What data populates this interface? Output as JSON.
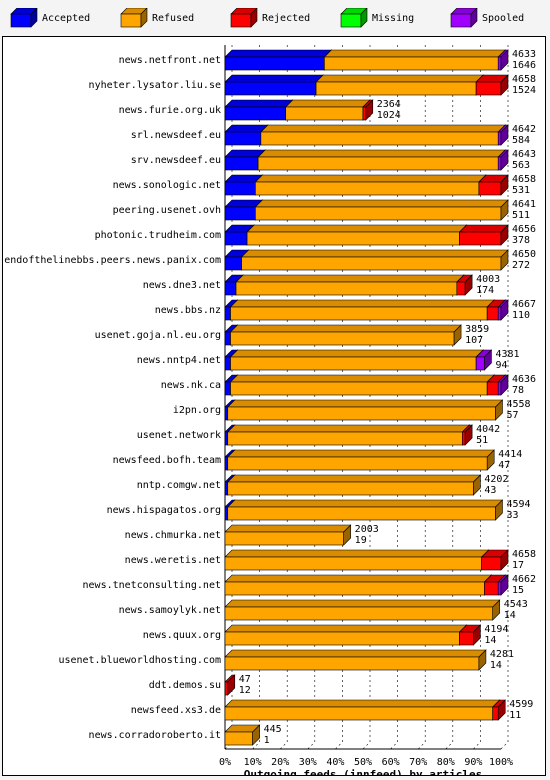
{
  "colors": {
    "accepted": "#0000ff",
    "refused": "#ffa500",
    "rejected": "#ff0000",
    "missing": "#00ff00",
    "spooled": "#a000ff"
  },
  "legend": [
    {
      "key": "accepted",
      "label": "Accepted",
      "icon": "cube-blue-icon"
    },
    {
      "key": "refused",
      "label": "Refused",
      "icon": "cube-orange-icon"
    },
    {
      "key": "rejected",
      "label": "Rejected",
      "icon": "cube-red-icon"
    },
    {
      "key": "missing",
      "label": "Missing",
      "icon": "cube-green-icon"
    },
    {
      "key": "spooled",
      "label": "Spooled",
      "icon": "cube-purple-icon"
    }
  ],
  "chart_data": {
    "type": "bar",
    "orientation": "horizontal",
    "stacked": true,
    "title": "Outgoing feeds (innfeed) by articles",
    "x_ticks": [
      "0%",
      "10%",
      "20%",
      "30%",
      "40%",
      "50%",
      "60%",
      "70%",
      "80%",
      "90%",
      "100%"
    ],
    "xlim": [
      0,
      100
    ],
    "grid": true,
    "legend_position": "top",
    "series_order": [
      "accepted",
      "refused",
      "rejected",
      "missing",
      "spooled"
    ],
    "rows": [
      {
        "name": "news.netfront.net",
        "offered": "4633",
        "accepted": "1646",
        "pct": {
          "accepted": 36,
          "refused": 63,
          "rejected": 0,
          "missing": 0,
          "spooled": 1
        }
      },
      {
        "name": "nyheter.lysator.liu.se",
        "offered": "4658",
        "accepted": "1524",
        "pct": {
          "accepted": 33,
          "refused": 58,
          "rejected": 9,
          "missing": 0,
          "spooled": 0
        }
      },
      {
        "name": "news.furie.org.uk",
        "offered": "2364",
        "accepted": "1024",
        "pct": {
          "accepted": 22,
          "refused": 28,
          "rejected": 1,
          "missing": 0,
          "spooled": 0
        }
      },
      {
        "name": "srl.newsdeef.eu",
        "offered": "4642",
        "accepted": "584",
        "pct": {
          "accepted": 13,
          "refused": 86,
          "rejected": 0,
          "missing": 0,
          "spooled": 1
        }
      },
      {
        "name": "srv.newsdeef.eu",
        "offered": "4643",
        "accepted": "563",
        "pct": {
          "accepted": 12,
          "refused": 87,
          "rejected": 0,
          "missing": 0,
          "spooled": 1
        }
      },
      {
        "name": "news.sonologic.net",
        "offered": "4658",
        "accepted": "531",
        "pct": {
          "accepted": 11,
          "refused": 81,
          "rejected": 8,
          "missing": 0,
          "spooled": 0
        }
      },
      {
        "name": "peering.usenet.ovh",
        "offered": "4641",
        "accepted": "511",
        "pct": {
          "accepted": 11,
          "refused": 89,
          "rejected": 0,
          "missing": 0,
          "spooled": 0
        }
      },
      {
        "name": "photonic.trudheim.com",
        "offered": "4656",
        "accepted": "378",
        "pct": {
          "accepted": 8,
          "refused": 77,
          "rejected": 15,
          "missing": 0,
          "spooled": 0
        }
      },
      {
        "name": "endofthelinebbs.peers.news.panix.com",
        "offered": "4650",
        "accepted": "272",
        "pct": {
          "accepted": 6,
          "refused": 94,
          "rejected": 0,
          "missing": 0,
          "spooled": 0
        }
      },
      {
        "name": "news.dne3.net",
        "offered": "4003",
        "accepted": "174",
        "pct": {
          "accepted": 4,
          "refused": 80,
          "rejected": 3,
          "missing": 0,
          "spooled": 0
        }
      },
      {
        "name": "news.bbs.nz",
        "offered": "4667",
        "accepted": "110",
        "pct": {
          "accepted": 2,
          "refused": 93,
          "rejected": 4,
          "missing": 0,
          "spooled": 1
        }
      },
      {
        "name": "usenet.goja.nl.eu.org",
        "offered": "3859",
        "accepted": "107",
        "pct": {
          "accepted": 2,
          "refused": 81,
          "rejected": 0,
          "missing": 0,
          "spooled": 0
        }
      },
      {
        "name": "news.nntp4.net",
        "offered": "4381",
        "accepted": "94",
        "pct": {
          "accepted": 2,
          "refused": 89,
          "rejected": 0,
          "missing": 0,
          "spooled": 3
        }
      },
      {
        "name": "news.nk.ca",
        "offered": "4636",
        "accepted": "78",
        "pct": {
          "accepted": 2,
          "refused": 93,
          "rejected": 4,
          "missing": 0,
          "spooled": 1
        }
      },
      {
        "name": "i2pn.org",
        "offered": "4558",
        "accepted": "57",
        "pct": {
          "accepted": 1,
          "refused": 97,
          "rejected": 0,
          "missing": 0,
          "spooled": 0
        }
      },
      {
        "name": "usenet.network",
        "offered": "4042",
        "accepted": "51",
        "pct": {
          "accepted": 1,
          "refused": 85,
          "rejected": 1,
          "missing": 0,
          "spooled": 0
        }
      },
      {
        "name": "newsfeed.bofh.team",
        "offered": "4414",
        "accepted": "47",
        "pct": {
          "accepted": 1,
          "refused": 94,
          "rejected": 0,
          "missing": 0,
          "spooled": 0
        }
      },
      {
        "name": "nntp.comgw.net",
        "offered": "4202",
        "accepted": "43",
        "pct": {
          "accepted": 1,
          "refused": 89,
          "rejected": 0,
          "missing": 0,
          "spooled": 0
        }
      },
      {
        "name": "news.hispagatos.org",
        "offered": "4594",
        "accepted": "33",
        "pct": {
          "accepted": 1,
          "refused": 97,
          "rejected": 0,
          "missing": 0,
          "spooled": 0
        }
      },
      {
        "name": "news.chmurka.net",
        "offered": "2003",
        "accepted": "19",
        "pct": {
          "accepted": 0,
          "refused": 43,
          "rejected": 0,
          "missing": 0,
          "spooled": 0
        }
      },
      {
        "name": "news.weretis.net",
        "offered": "4658",
        "accepted": "17",
        "pct": {
          "accepted": 0,
          "refused": 93,
          "rejected": 7,
          "missing": 0,
          "spooled": 0
        }
      },
      {
        "name": "news.tnetconsulting.net",
        "offered": "4662",
        "accepted": "15",
        "pct": {
          "accepted": 0,
          "refused": 94,
          "rejected": 5,
          "missing": 0,
          "spooled": 1
        }
      },
      {
        "name": "news.samoylyk.net",
        "offered": "4543",
        "accepted": "14",
        "pct": {
          "accepted": 0,
          "refused": 97,
          "rejected": 0,
          "missing": 0,
          "spooled": 0
        }
      },
      {
        "name": "news.quux.org",
        "offered": "4194",
        "accepted": "14",
        "pct": {
          "accepted": 0,
          "refused": 85,
          "rejected": 5,
          "missing": 0,
          "spooled": 0
        }
      },
      {
        "name": "usenet.blueworldhosting.com",
        "offered": "4281",
        "accepted": "14",
        "pct": {
          "accepted": 0,
          "refused": 92,
          "rejected": 0,
          "missing": 0,
          "spooled": 0
        }
      },
      {
        "name": "ddt.demos.su",
        "offered": "47",
        "accepted": "12",
        "pct": {
          "accepted": 0,
          "refused": 0,
          "rejected": 1,
          "missing": 0,
          "spooled": 0
        }
      },
      {
        "name": "newsfeed.xs3.de",
        "offered": "4599",
        "accepted": "11",
        "pct": {
          "accepted": 0,
          "refused": 97,
          "rejected": 2,
          "missing": 0,
          "spooled": 0
        }
      },
      {
        "name": "news.corradoroberto.it",
        "offered": "445",
        "accepted": "1",
        "pct": {
          "accepted": 0,
          "refused": 10,
          "rejected": 0,
          "missing": 0,
          "spooled": 0
        }
      }
    ]
  }
}
